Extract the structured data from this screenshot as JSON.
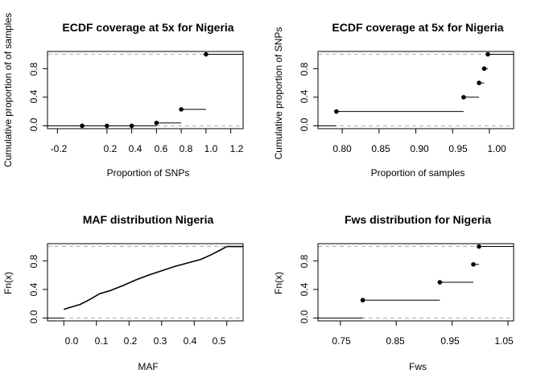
{
  "chart_data": [
    {
      "type": "line",
      "title": "ECDF coverage at 5x for Nigeria",
      "xlabel": "Proportion of SNPs",
      "ylabel": "Cumulative proportion of of samples",
      "xlim": [
        -0.28,
        1.3
      ],
      "ylim": [
        -0.04,
        1.04
      ],
      "xticks": [
        "-0.2",
        "0.2",
        "0.4",
        "0.6",
        "0.8",
        "1.0",
        "1.2"
      ],
      "yticks": [
        "0.0",
        "0.4",
        "0.8"
      ],
      "reference_lines": [
        0,
        1
      ],
      "steps": [
        {
          "x": 0.0,
          "y": 0.0
        },
        {
          "x": 0.2,
          "y": 0.0
        },
        {
          "x": 0.4,
          "y": 0.0
        },
        {
          "x": 0.6,
          "y": 0.04
        },
        {
          "x": 0.8,
          "y": 0.23
        },
        {
          "x": 1.0,
          "y": 1.0
        }
      ]
    },
    {
      "type": "line",
      "title": "ECDF coverage at 5x for Nigeria",
      "xlabel": "Proportion of samples",
      "ylabel": "Cumulative proportion of SNPs",
      "xlim": [
        0.767,
        1.033
      ],
      "ylim": [
        -0.04,
        1.04
      ],
      "xticks": [
        "0.80",
        "0.85",
        "0.90",
        "0.95",
        "1.00"
      ],
      "yticks": [
        "0.0",
        "0.4",
        "0.8"
      ],
      "reference_lines": [
        0,
        1
      ],
      "steps": [
        {
          "x": 0.792,
          "y": 0.2
        },
        {
          "x": 0.965,
          "y": 0.4
        },
        {
          "x": 0.986,
          "y": 0.6
        },
        {
          "x": 0.993,
          "y": 0.8
        },
        {
          "x": 0.998,
          "y": 1.0
        }
      ]
    },
    {
      "type": "line",
      "title": "MAF distribution Nigeria",
      "xlabel": "MAF",
      "ylabel": "Fn(x)",
      "xlim": [
        -0.05,
        0.55
      ],
      "ylim": [
        -0.04,
        1.04
      ],
      "xticks": [
        "0.0",
        "0.1",
        "0.2",
        "0.3",
        "0.4",
        "0.5"
      ],
      "yticks": [
        "0.0",
        "0.4",
        "0.8"
      ],
      "reference_lines": [
        0,
        1
      ],
      "curve": [
        {
          "x": 0.0,
          "y": 0.12
        },
        {
          "x": 0.02,
          "y": 0.15
        },
        {
          "x": 0.05,
          "y": 0.19
        },
        {
          "x": 0.08,
          "y": 0.26
        },
        {
          "x": 0.11,
          "y": 0.34
        },
        {
          "x": 0.14,
          "y": 0.38
        },
        {
          "x": 0.18,
          "y": 0.45
        },
        {
          "x": 0.22,
          "y": 0.53
        },
        {
          "x": 0.26,
          "y": 0.6
        },
        {
          "x": 0.3,
          "y": 0.66
        },
        {
          "x": 0.34,
          "y": 0.72
        },
        {
          "x": 0.38,
          "y": 0.77
        },
        {
          "x": 0.42,
          "y": 0.82
        },
        {
          "x": 0.45,
          "y": 0.88
        },
        {
          "x": 0.48,
          "y": 0.95
        },
        {
          "x": 0.5,
          "y": 1.0
        }
      ]
    },
    {
      "type": "line",
      "title": "Fws distribution for Nigeria",
      "xlabel": "Fws",
      "ylabel": "Fn(x)",
      "xlim": [
        0.71,
        1.06
      ],
      "ylim": [
        -0.04,
        1.04
      ],
      "xticks": [
        "0.75",
        "0.85",
        "0.95",
        "1.05"
      ],
      "yticks": [
        "0.0",
        "0.4",
        "0.8"
      ],
      "reference_lines": [
        0,
        1
      ],
      "steps": [
        {
          "x": 0.79,
          "y": 0.25
        },
        {
          "x": 0.928,
          "y": 0.5
        },
        {
          "x": 0.988,
          "y": 0.75
        },
        {
          "x": 0.998,
          "y": 1.0
        }
      ]
    }
  ]
}
